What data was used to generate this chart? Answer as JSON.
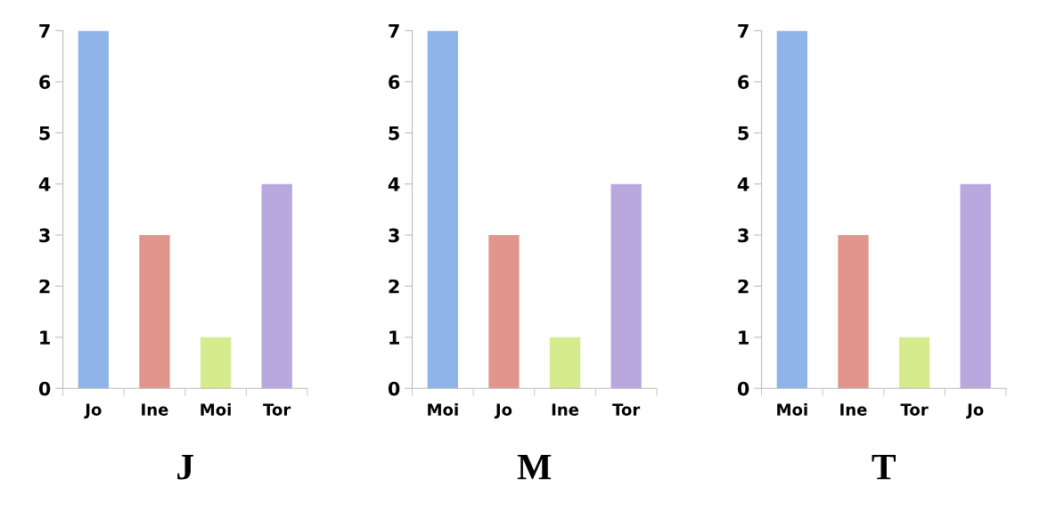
{
  "chart_data": [
    {
      "type": "bar",
      "title": "J",
      "categories": [
        "Jo",
        "Ine",
        "Moi",
        "Tor"
      ],
      "values": [
        7,
        3,
        1,
        4
      ],
      "colors": [
        "#8fb4ea",
        "#e0968c",
        "#d6ea8e",
        "#b9a8de"
      ],
      "ylim": [
        0,
        7
      ],
      "yticks": [
        0,
        1,
        2,
        3,
        4,
        5,
        6,
        7
      ],
      "grid": false,
      "legend": false
    },
    {
      "type": "bar",
      "title": "M",
      "categories": [
        "Moi",
        "Jo",
        "Ine",
        "Tor"
      ],
      "values": [
        7,
        3,
        1,
        4
      ],
      "colors": [
        "#8fb4ea",
        "#e0968c",
        "#d6ea8e",
        "#b9a8de"
      ],
      "ylim": [
        0,
        7
      ],
      "yticks": [
        0,
        1,
        2,
        3,
        4,
        5,
        6,
        7
      ],
      "grid": false,
      "legend": false
    },
    {
      "type": "bar",
      "title": "T",
      "categories": [
        "Moi",
        "Ine",
        "Tor",
        "Jo"
      ],
      "values": [
        7,
        3,
        1,
        4
      ],
      "colors": [
        "#8fb4ea",
        "#e0968c",
        "#d6ea8e",
        "#b9a8de"
      ],
      "ylim": [
        0,
        7
      ],
      "yticks": [
        0,
        1,
        2,
        3,
        4,
        5,
        6,
        7
      ],
      "grid": false,
      "legend": false
    }
  ]
}
